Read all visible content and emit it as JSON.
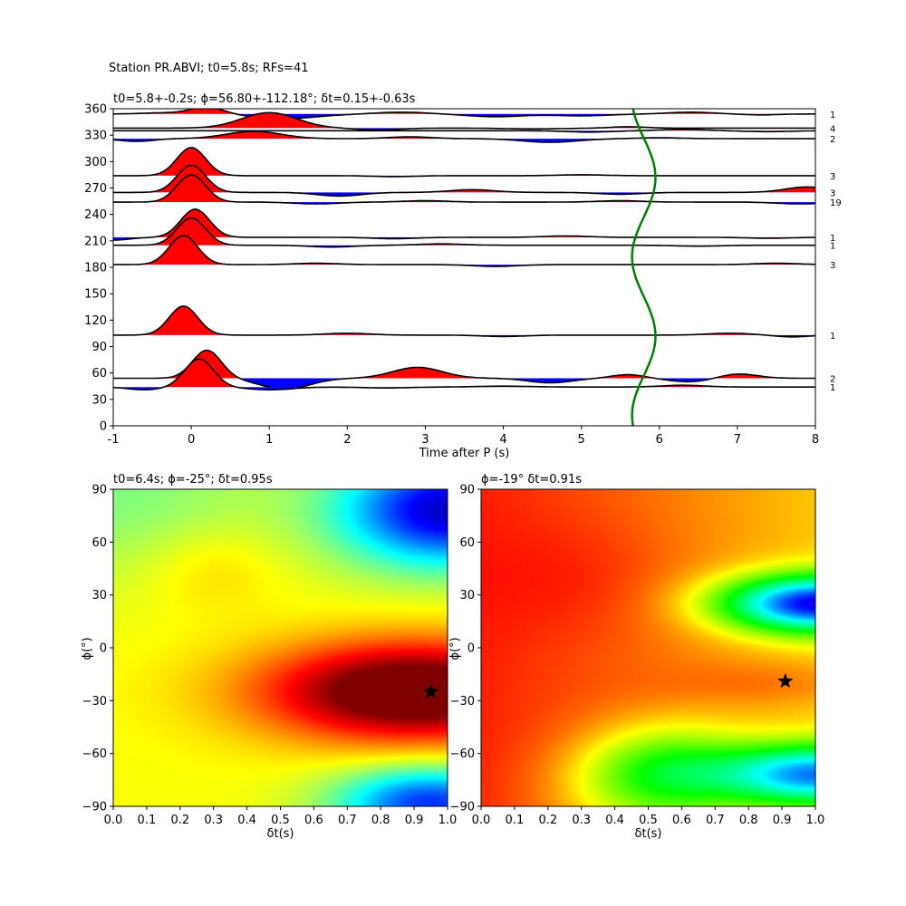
{
  "figure": {
    "suptitle": "Station PR.ABVI; t0=5.8s; RFs=41",
    "colors": {
      "positive": "#ff0000",
      "negative": "#0000ff",
      "trace": "#000000",
      "curve": "#008000",
      "star": "#000000"
    }
  },
  "chart_data": [
    {
      "type": "line",
      "title": "t0=5.8+-0.2s; ϕ=56.80+-112.18°; δt=0.15+-0.63s",
      "xlabel": "Time after P (s)",
      "ylabel": "",
      "xlim": [
        -1,
        8
      ],
      "ylim": [
        0,
        360
      ],
      "xticks": [
        -1,
        0,
        1,
        2,
        3,
        4,
        5,
        6,
        7,
        8
      ],
      "yticks": [
        0,
        30,
        60,
        90,
        120,
        150,
        180,
        210,
        240,
        270,
        300,
        330,
        360
      ],
      "traces": [
        {
          "baz": 354,
          "count": "1",
          "pulses": [
            [
              -0.4,
              1.2,
              0.35
            ],
            [
              0.2,
              8,
              0.3
            ],
            [
              1.2,
              -5,
              0.6
            ],
            [
              2.7,
              2,
              0.45
            ],
            [
              3.9,
              -3,
              0.5
            ],
            [
              5.0,
              -2,
              0.5
            ],
            [
              6.4,
              2,
              0.4
            ],
            [
              7.3,
              -1,
              0.3
            ]
          ]
        },
        {
          "baz": 338,
          "count": "4",
          "pulses": [
            [
              1.0,
              17,
              0.5
            ],
            [
              2.4,
              -2,
              0.4
            ],
            [
              4.4,
              -1,
              0.5
            ],
            [
              5.6,
              1.5,
              0.3
            ]
          ]
        },
        {
          "baz": 335,
          "count": "",
          "pulses": [
            [
              5.1,
              -1.5,
              0.4
            ],
            [
              6.3,
              1.5,
              0.4
            ],
            [
              7.4,
              -1,
              0.4
            ]
          ]
        },
        {
          "baz": 326,
          "count": "2",
          "pulses": [
            [
              -0.7,
              -3,
              0.3
            ],
            [
              0.8,
              8,
              0.5
            ],
            [
              2.8,
              2,
              0.4
            ],
            [
              4.6,
              -4,
              0.5
            ],
            [
              6.0,
              1,
              0.4
            ]
          ]
        },
        {
          "baz": 284,
          "count": "3",
          "pulses": [
            [
              0.0,
              31,
              0.26
            ],
            [
              2.6,
              -1,
              0.4
            ],
            [
              5.0,
              1,
              0.4
            ]
          ]
        },
        {
          "baz": 265,
          "count": "3",
          "pulses": [
            [
              0.0,
              30,
              0.26
            ],
            [
              1.9,
              -4,
              0.4
            ],
            [
              3.6,
              3,
              0.4
            ],
            [
              5.5,
              -2,
              0.4
            ],
            [
              7.9,
              6,
              0.4
            ]
          ]
        },
        {
          "baz": 254,
          "count": "19",
          "pulses": [
            [
              0.0,
              30,
              0.26
            ],
            [
              1.6,
              -2,
              0.4
            ],
            [
              3.0,
              1.5,
              0.4
            ],
            [
              5.5,
              1.5,
              0.4
            ],
            [
              7.8,
              -2,
              0.4
            ]
          ]
        },
        {
          "baz": 214,
          "count": "1",
          "pulses": [
            [
              -1.0,
              -3,
              0.3
            ],
            [
              0.05,
              31,
              0.26
            ],
            [
              2.6,
              -1.5,
              0.4
            ],
            [
              4.8,
              1.5,
              0.4
            ],
            [
              7.4,
              -1,
              0.4
            ]
          ]
        },
        {
          "baz": 205,
          "count": "1",
          "pulses": [
            [
              0.0,
              30,
              0.26
            ],
            [
              1.8,
              -2,
              0.4
            ],
            [
              3.2,
              1.5,
              0.4
            ],
            [
              6.5,
              -1,
              0.4
            ]
          ]
        },
        {
          "baz": 183,
          "count": "3",
          "pulses": [
            [
              -0.1,
              32,
              0.26
            ],
            [
              1.6,
              1.5,
              0.4
            ],
            [
              3.9,
              -2,
              0.4
            ],
            [
              7.5,
              1.5,
              0.4
            ]
          ]
        },
        {
          "baz": 103,
          "count": "1",
          "pulses": [
            [
              -0.1,
              32,
              0.26
            ],
            [
              2.0,
              2,
              0.4
            ],
            [
              4.0,
              -1.5,
              0.4
            ],
            [
              6.9,
              2,
              0.4
            ],
            [
              7.7,
              -2,
              0.3
            ]
          ]
        },
        {
          "baz": 54,
          "count": "2",
          "pulses": [
            [
              0.2,
              31,
              0.26
            ],
            [
              1.2,
              -12,
              0.45
            ],
            [
              2.9,
              12,
              0.45
            ],
            [
              4.6,
              -5,
              0.4
            ],
            [
              5.6,
              4,
              0.3
            ],
            [
              6.4,
              -4,
              0.4
            ],
            [
              7.0,
              5,
              0.35
            ]
          ]
        },
        {
          "baz": 44,
          "count": "1",
          "pulses": [
            [
              -0.6,
              -3,
              0.3
            ],
            [
              0.1,
              31,
              0.26
            ],
            [
              1.0,
              -3,
              0.4
            ],
            [
              2.5,
              -1,
              0.4
            ],
            [
              4.0,
              1,
              0.5
            ],
            [
              6.3,
              2,
              0.4
            ]
          ]
        }
      ],
      "curve": {
        "t0": 5.8,
        "amplitude": 0.15,
        "period_deg": 180,
        "phase_deg": 56.8
      }
    },
    {
      "type": "heatmap",
      "title": "t0=6.4s; ϕ=-25°; δt=0.95s",
      "xlabel": "δt(s)",
      "ylabel": "ϕ(°)",
      "xlim": [
        0.0,
        1.0
      ],
      "ylim": [
        -90,
        90
      ],
      "xticks": [
        0.0,
        0.1,
        0.2,
        0.3,
        0.4,
        0.5,
        0.6,
        0.7,
        0.8,
        0.9,
        1.0
      ],
      "yticks": [
        -90,
        -60,
        -30,
        0,
        30,
        60,
        90
      ],
      "best": {
        "dt": 0.95,
        "phi": -25
      },
      "colormap": "jet"
    },
    {
      "type": "heatmap",
      "title": "ϕ=-19° δt=0.91s",
      "xlabel": "δt(s)",
      "ylabel": "ϕ(°)",
      "xlim": [
        0.0,
        1.0
      ],
      "ylim": [
        -90,
        90
      ],
      "xticks": [
        0.0,
        0.1,
        0.2,
        0.3,
        0.4,
        0.5,
        0.6,
        0.7,
        0.8,
        0.9,
        1.0
      ],
      "yticks": [
        -90,
        -60,
        -30,
        0,
        30,
        60,
        90
      ],
      "best": {
        "dt": 0.91,
        "phi": -19
      },
      "colormap": "hsv"
    }
  ]
}
